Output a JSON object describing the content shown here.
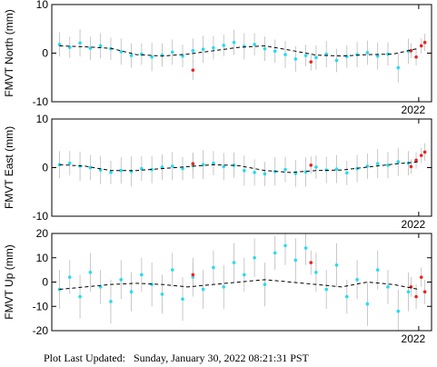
{
  "chart_data": [
    {
      "type": "scatter",
      "ylabel": "FMVT North (mm)",
      "xlim": [
        2014.85,
        2022.25
      ],
      "xticks": [
        2022
      ],
      "ylim": [
        -10,
        10
      ],
      "yticks": [
        -10,
        0,
        10
      ],
      "series": [
        {
          "color": "#22ddee",
          "x": [
            2015.0,
            2015.2,
            2015.4,
            2015.6,
            2015.8,
            2016.0,
            2016.2,
            2016.4,
            2016.6,
            2016.8,
            2017.0,
            2017.2,
            2017.4,
            2017.6,
            2017.8,
            2018.0,
            2018.2,
            2018.4,
            2018.6,
            2018.8,
            2019.0,
            2019.2,
            2019.4,
            2019.6,
            2019.8,
            2020.0,
            2020.2,
            2020.4,
            2020.6,
            2020.8,
            2021.0,
            2021.2,
            2021.4,
            2021.6,
            2021.8
          ],
          "values": [
            1.8,
            1.2,
            2.1,
            1.0,
            1.5,
            0.9,
            0.3,
            -0.5,
            -0.2,
            -0.8,
            -0.4,
            0.2,
            -0.6,
            0.5,
            0.8,
            1.1,
            1.6,
            2.2,
            1.4,
            1.8,
            0.9,
            0.4,
            -0.3,
            -1.2,
            -0.5,
            -0.9,
            -0.2,
            -1.5,
            -0.7,
            -0.3,
            0.1,
            -0.6,
            -0.2,
            -3.0,
            0.4
          ],
          "errors": [
            2.5,
            2.2,
            2.8,
            2.4,
            2.6,
            2.3,
            2.7,
            2.5,
            2.2,
            2.9,
            2.4,
            2.6,
            2.3,
            2.5,
            2.8,
            2.4,
            2.2,
            2.6,
            2.7,
            2.3,
            2.5,
            2.4,
            2.8,
            2.6,
            2.2,
            2.5,
            2.7,
            2.4,
            2.3,
            2.6,
            2.5,
            2.8,
            2.4,
            3.0,
            2.6
          ]
        },
        {
          "color": "#ee2222",
          "x": [
            2017.6,
            2019.9,
            2021.85,
            2021.95,
            2022.05,
            2022.12
          ],
          "values": [
            -3.5,
            -1.8,
            0.5,
            -0.8,
            1.5,
            2.2
          ],
          "errors": [
            2.0,
            1.8,
            1.5,
            1.7,
            1.6,
            1.8
          ]
        },
        {
          "color": "#000000",
          "dashed": true,
          "x": [
            2015,
            2015.5,
            2016,
            2016.5,
            2017,
            2017.5,
            2018,
            2018.5,
            2019,
            2019.5,
            2020,
            2020.5,
            2021,
            2021.5,
            2022
          ],
          "values": [
            1.5,
            1.3,
            1.0,
            -0.3,
            -0.6,
            -0.2,
            0.5,
            1.2,
            1.5,
            0.6,
            -0.4,
            -0.6,
            -0.3,
            -0.2,
            1.0
          ]
        }
      ]
    },
    {
      "type": "scatter",
      "ylabel": "FMVT East (mm)",
      "xlim": [
        2014.85,
        2022.25
      ],
      "xticks": [
        2022
      ],
      "ylim": [
        -10,
        10
      ],
      "yticks": [
        -10,
        0,
        10
      ],
      "series": [
        {
          "color": "#22ddee",
          "x": [
            2015.0,
            2015.2,
            2015.4,
            2015.6,
            2015.8,
            2016.0,
            2016.2,
            2016.4,
            2016.6,
            2016.8,
            2017.0,
            2017.2,
            2017.4,
            2017.6,
            2017.8,
            2018.0,
            2018.2,
            2018.4,
            2018.6,
            2018.8,
            2019.0,
            2019.2,
            2019.4,
            2019.6,
            2019.8,
            2020.0,
            2020.2,
            2020.4,
            2020.6,
            2020.8,
            2021.0,
            2021.2,
            2021.4,
            2021.6,
            2021.8
          ],
          "values": [
            0.6,
            0.9,
            0.3,
            0.0,
            -0.5,
            -1.0,
            -0.6,
            -0.8,
            -0.2,
            -0.4,
            0.1,
            0.3,
            -0.2,
            0.4,
            0.6,
            0.9,
            0.2,
            0.5,
            -0.6,
            -1.0,
            -1.3,
            -0.8,
            -0.4,
            -1.2,
            -0.9,
            0.1,
            -0.5,
            -0.3,
            -1.1,
            -0.2,
            0.3,
            0.8,
            0.5,
            1.2,
            0.9
          ],
          "errors": [
            2.8,
            2.5,
            3.0,
            2.6,
            2.9,
            2.4,
            2.7,
            3.1,
            2.5,
            2.8,
            2.6,
            2.9,
            2.4,
            2.7,
            3.0,
            2.5,
            2.8,
            2.6,
            3.1,
            2.7,
            2.5,
            2.9,
            2.6,
            2.8,
            3.0,
            2.4,
            2.7,
            2.9,
            2.5,
            2.8,
            2.6,
            3.0,
            2.7,
            2.9,
            2.5
          ]
        },
        {
          "color": "#ee2222",
          "x": [
            2017.6,
            2019.9,
            2021.85,
            2021.95,
            2022.05,
            2022.12
          ],
          "values": [
            0.8,
            0.5,
            0.2,
            1.5,
            2.5,
            3.2
          ],
          "errors": [
            2.0,
            1.8,
            1.5,
            1.7,
            1.6,
            1.8
          ]
        },
        {
          "color": "#000000",
          "dashed": true,
          "x": [
            2015,
            2015.5,
            2016,
            2016.5,
            2017,
            2017.5,
            2018,
            2018.5,
            2019,
            2019.5,
            2020,
            2020.5,
            2021,
            2021.5,
            2022
          ],
          "values": [
            0.6,
            0.3,
            -0.6,
            -0.6,
            -0.2,
            0.2,
            0.6,
            0.4,
            -0.6,
            -1.0,
            -0.6,
            -0.5,
            0.1,
            0.7,
            1.2
          ]
        }
      ]
    },
    {
      "type": "scatter",
      "ylabel": "FMVT Up (mm)",
      "xlim": [
        2014.85,
        2022.25
      ],
      "xticks": [
        2022
      ],
      "ylim": [
        -20,
        20
      ],
      "yticks": [
        -20,
        -10,
        0,
        10,
        20
      ],
      "series": [
        {
          "color": "#22ddee",
          "x": [
            2015.0,
            2015.2,
            2015.4,
            2015.6,
            2015.8,
            2016.0,
            2016.2,
            2016.4,
            2016.6,
            2016.8,
            2017.0,
            2017.2,
            2017.4,
            2017.6,
            2017.8,
            2018.0,
            2018.2,
            2018.4,
            2018.6,
            2018.8,
            2019.0,
            2019.2,
            2019.4,
            2019.6,
            2019.8,
            2020.0,
            2020.2,
            2020.4,
            2020.6,
            2020.8,
            2021.0,
            2021.2,
            2021.4,
            2021.6,
            2021.8
          ],
          "values": [
            -3,
            2,
            -6,
            4,
            -2,
            -8,
            1,
            -4,
            3,
            -1,
            -5,
            5,
            -7,
            2,
            -3,
            6,
            -2,
            8,
            3,
            10,
            -1,
            12,
            15,
            9,
            14,
            4,
            -3,
            7,
            -6,
            1,
            -9,
            5,
            -2,
            -12,
            -4
          ],
          "errors": [
            8,
            7,
            9,
            8,
            7,
            9,
            8,
            8,
            7,
            9,
            8,
            7,
            9,
            8,
            8,
            7,
            9,
            8,
            7,
            8,
            9,
            7,
            8,
            9,
            7,
            8,
            8,
            9,
            7,
            8,
            9,
            8,
            7,
            9,
            8
          ]
        },
        {
          "color": "#ee2222",
          "x": [
            2017.6,
            2019.9,
            2021.85,
            2021.95,
            2022.05,
            2022.12
          ],
          "values": [
            3,
            8,
            -2,
            -6,
            2,
            -4
          ],
          "errors": [
            5,
            5,
            4,
            5,
            4,
            5
          ]
        },
        {
          "color": "#000000",
          "dashed": true,
          "x": [
            2015,
            2015.5,
            2016,
            2016.5,
            2017,
            2017.5,
            2018,
            2018.5,
            2019,
            2019.5,
            2020,
            2020.5,
            2021,
            2021.5,
            2022
          ],
          "values": [
            -3,
            -2,
            -1,
            -0.5,
            -1,
            -2,
            -1,
            0,
            1,
            0,
            -1,
            -2,
            0,
            -1,
            -3
          ]
        }
      ]
    }
  ],
  "footer": "Plot Last Updated:   Sunday, January 30, 2022 08:21:31 PST"
}
